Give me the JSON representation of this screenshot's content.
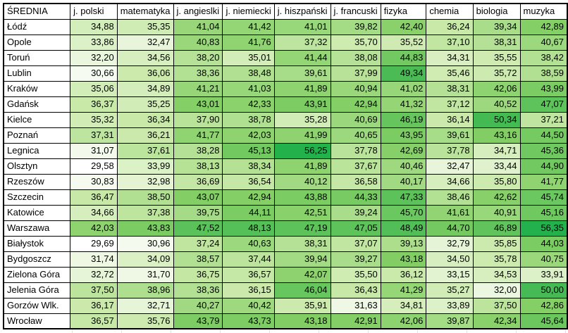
{
  "table": {
    "columns": [
      "ŚREDNIA",
      "j. polski",
      "matematyka",
      "j. angieslki",
      "j. niemiecki",
      "j. hiszpański",
      "j. francuski",
      "fizyka",
      "chemia",
      "biologia",
      "muzyka"
    ],
    "rows": [
      {
        "city": "Łódź",
        "values": [
          "34,88",
          "35,35",
          "41,04",
          "41,42",
          "41,01",
          "39,82",
          "42,40",
          "36,24",
          "39,34",
          "42,89"
        ]
      },
      {
        "city": "Opole",
        "values": [
          "33,86",
          "32,47",
          "40,83",
          "41,76",
          "37,32",
          "35,70",
          "35,52",
          "37,10",
          "38,31",
          "40,67"
        ]
      },
      {
        "city": "Toruń",
        "values": [
          "32,20",
          "34,56",
          "38,20",
          "35,01",
          "41,44",
          "38,08",
          "44,83",
          "34,31",
          "35,55",
          "38,42"
        ]
      },
      {
        "city": "Lublin",
        "values": [
          "30,66",
          "36,06",
          "38,36",
          "38,48",
          "39,61",
          "37,99",
          "49,34",
          "35,46",
          "35,72",
          "38,59"
        ]
      },
      {
        "city": "Kraków",
        "values": [
          "35,06",
          "34,89",
          "41,21",
          "41,03",
          "41,89",
          "40,94",
          "41,02",
          "38,31",
          "42,06",
          "43,99"
        ]
      },
      {
        "city": "Gdańsk",
        "values": [
          "36,37",
          "35,25",
          "43,01",
          "42,33",
          "43,91",
          "42,94",
          "41,32",
          "37,12",
          "40,52",
          "47,07"
        ]
      },
      {
        "city": "Kielce",
        "values": [
          "35,32",
          "36,34",
          "37,90",
          "38,78",
          "35,28",
          "40,69",
          "46,19",
          "36,14",
          "50,34",
          "37,21"
        ]
      },
      {
        "city": "Poznań",
        "values": [
          "37,31",
          "36,21",
          "41,77",
          "42,03",
          "41,99",
          "40,65",
          "43,95",
          "39,61",
          "43,16",
          "44,50"
        ]
      },
      {
        "city": "Legnica",
        "values": [
          "31,07",
          "37,61",
          "38,28",
          "45,13",
          "56,25",
          "37,78",
          "42,69",
          "37,78",
          "34,71",
          "45,36"
        ]
      },
      {
        "city": "Olsztyn",
        "values": [
          "29,58",
          "33,99",
          "38,13",
          "38,34",
          "41,89",
          "37,67",
          "40,46",
          "32,47",
          "33,44",
          "44,90"
        ]
      },
      {
        "city": "Rzeszów",
        "values": [
          "30,83",
          "32,98",
          "36,69",
          "36,54",
          "40,12",
          "36,58",
          "40,17",
          "34,66",
          "35,80",
          "41,77"
        ]
      },
      {
        "city": "Szczecin",
        "values": [
          "36,47",
          "38,50",
          "43,07",
          "42,94",
          "43,88",
          "44,33",
          "47,33",
          "38,46",
          "42,62",
          "45,74"
        ]
      },
      {
        "city": "Katowice",
        "values": [
          "34,66",
          "37,38",
          "39,75",
          "44,11",
          "42,51",
          "39,24",
          "45,70",
          "41,61",
          "40,91",
          "45,16"
        ]
      },
      {
        "city": "Warszawa",
        "values": [
          "42,03",
          "43,83",
          "47,52",
          "48,13",
          "47,19",
          "47,05",
          "48,49",
          "44,70",
          "46,89",
          "56,35"
        ]
      },
      {
        "city": "Białystok",
        "values": [
          "29,69",
          "30,96",
          "37,24",
          "40,63",
          "38,31",
          "37,07",
          "39,13",
          "32,79",
          "35,85",
          "44,03"
        ]
      },
      {
        "city": "Bydgoszcz",
        "values": [
          "31,74",
          "34,09",
          "38,57",
          "37,44",
          "39,94",
          "39,27",
          "43,18",
          "34,50",
          "35,78",
          "40,75"
        ]
      },
      {
        "city": "Zielona Góra",
        "values": [
          "32,72",
          "31,70",
          "36,75",
          "36,57",
          "42,07",
          "35,50",
          "36,12",
          "33,15",
          "34,53",
          "33,91"
        ]
      },
      {
        "city": "Jelenia Góra",
        "values": [
          "37,50",
          "38,96",
          "38,36",
          "36,15",
          "46,04",
          "36,43",
          "41,29",
          "35,27",
          "32,00",
          "50,00"
        ]
      },
      {
        "city": "Gorzów Wlk.",
        "values": [
          "36,17",
          "32,71",
          "40,27",
          "40,42",
          "35,91",
          "31,63",
          "34,81",
          "33,89",
          "37,50",
          "42,86"
        ]
      },
      {
        "city": "Wrocław",
        "values": [
          "36,57",
          "35,76",
          "43,79",
          "43,73",
          "43,18",
          "42,91",
          "42,06",
          "39,87",
          "42,34",
          "45,64"
        ]
      }
    ]
  },
  "color_scale": {
    "min": 29.58,
    "max": 56.35,
    "stops": [
      {
        "t": 0.0,
        "color": "#FFFFFF"
      },
      {
        "t": 0.25,
        "color": "#C9E9A9"
      },
      {
        "t": 0.5,
        "color": "#84CF66"
      },
      {
        "t": 0.75,
        "color": "#48BB54"
      },
      {
        "t": 1.0,
        "color": "#22B14C"
      }
    ],
    "border_color": "#000000"
  }
}
